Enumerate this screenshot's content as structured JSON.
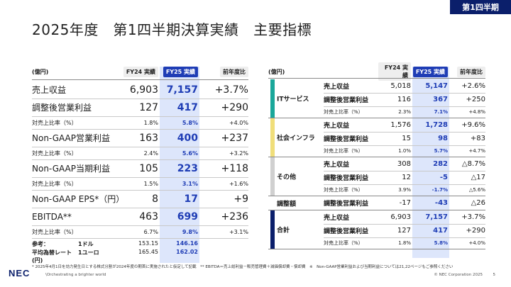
{
  "header": {
    "title": "2025年度　第1四半期決算実績　主要指標",
    "badge": "第1四半期"
  },
  "left_table": {
    "unit": "(億円)",
    "columns": [
      "FY24 実績",
      "FY25 実績",
      "前年度比"
    ],
    "rows": [
      {
        "label": "売上収益",
        "fy24": "6,903",
        "fy25": "7,157",
        "yoy": "+3.7%",
        "kind": "big"
      },
      {
        "label": "調整後営業利益",
        "fy24": "127",
        "fy25": "417",
        "yoy": "+290",
        "kind": "big"
      },
      {
        "label": "対売上比率（%）",
        "fy24": "1.8%",
        "fy25": "5.8%",
        "yoy": "+4.0%",
        "kind": "small"
      },
      {
        "label": "Non-GAAP営業利益",
        "fy24": "163",
        "fy25": "400",
        "yoy": "+237",
        "kind": "big"
      },
      {
        "label": "対売上比率（%）",
        "fy24": "2.4%",
        "fy25": "5.6%",
        "yoy": "+3.2%",
        "kind": "small"
      },
      {
        "label": "Non-GAAP当期利益",
        "fy24": "105",
        "fy25": "223",
        "yoy": "+118",
        "kind": "big"
      },
      {
        "label": "対売上比率（%）",
        "fy24": "1.5%",
        "fy25": "3.1%",
        "yoy": "+1.6%",
        "kind": "small"
      },
      {
        "label": "Non-GAAP EPS*（円）",
        "fy24": "8",
        "fy25": "17",
        "yoy": "+9",
        "kind": "big"
      },
      {
        "label": "EBITDA**",
        "fy24": "463",
        "fy25": "699",
        "yoy": "+236",
        "kind": "big"
      },
      {
        "label": "対売上比率（%）",
        "fy24": "6.7%",
        "fy25": "9.8%",
        "yoy": "+3.1%",
        "kind": "small"
      }
    ],
    "reference": {
      "label": "参考：",
      "rows": [
        {
          "a": "参考：",
          "b": "1ドル",
          "fy24": "153.15",
          "fy25": "146.16"
        },
        {
          "a": "平均為替レート(円)",
          "b": "1ユーロ",
          "fy24": "165.45",
          "fy25": "162.02"
        }
      ]
    }
  },
  "right_table": {
    "unit": "(億円)",
    "columns": [
      "FY24 実績",
      "FY25 実績",
      "前年度比"
    ],
    "segments": [
      {
        "name": "ITサービス",
        "color": "#1aa79a",
        "rows": [
          {
            "label": "売上収益",
            "fy24": "5,018",
            "fy25": "5,147",
            "yoy": "+2.6%",
            "kind": "big"
          },
          {
            "label": "調整後営業利益",
            "fy24": "116",
            "fy25": "367",
            "yoy": "+250",
            "kind": "big"
          },
          {
            "label": "対売上比率（%）",
            "fy24": "2.3%",
            "fy25": "7.1%",
            "yoy": "+4.8%",
            "kind": "small"
          }
        ]
      },
      {
        "name": "社会インフラ",
        "color": "#f0de7a",
        "rows": [
          {
            "label": "売上収益",
            "fy24": "1,576",
            "fy25": "1,728",
            "yoy": "+9.6%",
            "kind": "big"
          },
          {
            "label": "調整後営業利益",
            "fy24": "15",
            "fy25": "98",
            "yoy": "+83",
            "kind": "big"
          },
          {
            "label": "対売上比率（%）",
            "fy24": "1.0%",
            "fy25": "5.7%",
            "yoy": "+4.7%",
            "kind": "small"
          }
        ]
      },
      {
        "name": "その他",
        "color": "#d0d0d0",
        "rows": [
          {
            "label": "売上収益",
            "fy24": "308",
            "fy25": "282",
            "yoy": "△8.7%",
            "kind": "big"
          },
          {
            "label": "調整後営業利益",
            "fy24": "12",
            "fy25": "-5",
            "yoy": "△17",
            "kind": "big"
          },
          {
            "label": "対売上比率（%）",
            "fy24": "3.9%",
            "fy25": "-1.7%",
            "yoy": "△5.6%",
            "kind": "small"
          }
        ]
      },
      {
        "name": "調整額",
        "color": "#ffffff",
        "rows": [
          {
            "label": "調整後営業利益",
            "fy24": "-17",
            "fy25": "-43",
            "yoy": "△26",
            "kind": "big"
          }
        ]
      },
      {
        "name": "合計",
        "color": "#0b1f6b",
        "rows": [
          {
            "label": "売上収益",
            "fy24": "6,903",
            "fy25": "7,157",
            "yoy": "+3.7%",
            "kind": "big"
          },
          {
            "label": "調整後営業利益",
            "fy24": "127",
            "fy25": "417",
            "yoy": "+290",
            "kind": "big"
          },
          {
            "label": "対売上比率（%）",
            "fy24": "1.8%",
            "fy25": "5.8%",
            "yoy": "+4.0%",
            "kind": "small"
          }
        ]
      }
    ]
  },
  "footer": {
    "note": "* 2025年4月1日を効力発生日とする株式分割が2024年度の期首に実施されたと仮定して記載　** EBITDA＝売上総利益－販売管理費＋減価償却費・償却費　※　Non-GAAP営業利益および当期利益については21,22ページもご参照ください",
    "logo": "NEC",
    "tagline": "\\Orchestrating a brighter world",
    "copyright": "© NEC Corporation 2025",
    "page": "5"
  }
}
